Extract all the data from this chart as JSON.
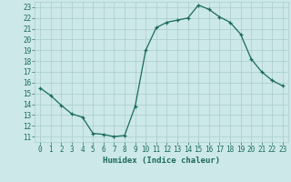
{
  "xlabel": "Humidex (Indice chaleur)",
  "x": [
    0,
    1,
    2,
    3,
    4,
    5,
    6,
    7,
    8,
    9,
    10,
    11,
    12,
    13,
    14,
    15,
    16,
    17,
    18,
    19,
    20,
    21,
    22,
    23
  ],
  "y": [
    15.5,
    14.8,
    13.9,
    13.1,
    12.8,
    11.3,
    11.2,
    11.0,
    11.1,
    13.8,
    19.0,
    21.1,
    21.6,
    21.8,
    22.0,
    23.2,
    22.8,
    22.1,
    21.6,
    20.5,
    18.2,
    17.0,
    16.2,
    15.7
  ],
  "line_color": "#1a6b5a",
  "marker": "+",
  "bg_color": "#cce8e8",
  "grid_color": "#aacccc",
  "ylim": [
    11,
    23
  ],
  "yticks": [
    11,
    12,
    13,
    14,
    15,
    16,
    17,
    18,
    19,
    20,
    21,
    22,
    23
  ],
  "xticks": [
    0,
    1,
    2,
    3,
    4,
    5,
    6,
    7,
    8,
    9,
    10,
    11,
    12,
    13,
    14,
    15,
    16,
    17,
    18,
    19,
    20,
    21,
    22,
    23
  ],
  "tick_fontsize": 5.5,
  "xlabel_fontsize": 6.5,
  "tick_color": "#1a6b5a",
  "label_color": "#1a6b5a"
}
